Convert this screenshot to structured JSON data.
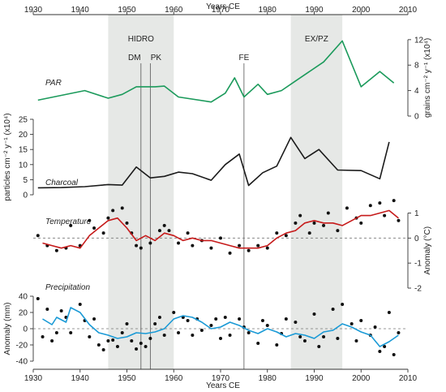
{
  "chart_data": {
    "type": "line",
    "xlabel_top": "Years CE",
    "xlabel_bottom": "Years CE",
    "x_range": [
      1930,
      2010
    ],
    "x_ticks": [
      "1930",
      "1940",
      "1950",
      "1960",
      "1970",
      "1980",
      "1990",
      "2000",
      "2010"
    ],
    "shaded_periods": [
      {
        "label": "HIDRO",
        "from": 1946,
        "to": 1960,
        "color": "#e6e8e6"
      },
      {
        "label": "EX/PZ",
        "from": 1985,
        "to": 1996,
        "color": "#e6e8e6"
      }
    ],
    "event_lines": [
      {
        "label": "DM",
        "year": 1953
      },
      {
        "label": "PK",
        "year": 1955
      },
      {
        "label": "FE",
        "year": 1975
      }
    ],
    "panels": [
      {
        "id": "par",
        "title": "PAR",
        "ylabel": "grains cm⁻² y⁻¹ (x10⁴)",
        "axis_side": "right",
        "ylim": [
          0,
          13
        ],
        "yticks": [
          "0",
          "4",
          "8",
          "12"
        ],
        "ytick_values": [
          0,
          4,
          8,
          12
        ],
        "series": [
          {
            "color": "#1b9a5b",
            "x": [
              1931,
              1941,
              1946,
              1949,
              1952,
              1956,
              1958,
              1961,
              1968,
              1971,
              1973,
              1975,
              1978,
              1980,
              1983,
              1986,
              1992,
              1996,
              2000,
              2004,
              2007
            ],
            "values": [
              2.5,
              4.0,
              2.8,
              3.4,
              4.6,
              4.6,
              4.7,
              3.0,
              2.2,
              3.6,
              6.0,
              3.0,
              5.0,
              3.4,
              4.0,
              5.5,
              8.5,
              11.8,
              4.6,
              7.0,
              5.2
            ]
          }
        ]
      },
      {
        "id": "charcoal",
        "title": "Charcoal",
        "ylabel": "particles cm⁻² y⁻¹ (x10⁴)",
        "axis_side": "left",
        "ylim": [
          0,
          25
        ],
        "yticks": [
          "0",
          "5",
          "10",
          "15",
          "20",
          "25"
        ],
        "ytick_values": [
          0,
          5,
          10,
          15,
          20,
          25
        ],
        "series": [
          {
            "color": "#1a1a1a",
            "x": [
              1931,
              1936,
              1941,
              1946,
              1949,
              1952,
              1955,
              1958,
              1961,
              1964,
              1968,
              1971,
              1974,
              1976,
              1979,
              1982,
              1985,
              1988,
              1991,
              1995,
              2000,
              2004,
              2006
            ],
            "values": [
              2.3,
              2.4,
              2.7,
              3.4,
              3.2,
              9.2,
              5.6,
              6.1,
              7.5,
              7.0,
              4.8,
              10.0,
              13.5,
              3.1,
              7.3,
              9.5,
              19.0,
              12.0,
              15.0,
              8.2,
              8.0,
              5.3,
              17.5
            ]
          }
        ]
      },
      {
        "id": "temperature",
        "title": "Temperature",
        "ylabel": "Anomaly (°C)",
        "axis_side": "right",
        "ylim": [
          -2,
          1.6
        ],
        "yticks": [
          "-2",
          "-1",
          "0",
          "1"
        ],
        "ytick_values": [
          -2,
          -1,
          0,
          1
        ],
        "zero_line": true,
        "series": [
          {
            "color": "#c61a1a",
            "x": [
              1932,
              1934,
              1936,
              1938,
              1940,
              1942,
              1944,
              1946,
              1948,
              1950,
              1952,
              1954,
              1956,
              1958,
              1960,
              1962,
              1964,
              1966,
              1968,
              1970,
              1972,
              1974,
              1976,
              1978,
              1980,
              1982,
              1984,
              1986,
              1988,
              1990,
              1992,
              1994,
              1996,
              1998,
              2000,
              2002,
              2004,
              2006,
              2008
            ],
            "values": [
              -0.2,
              -0.3,
              -0.4,
              -0.3,
              -0.4,
              0.1,
              0.4,
              0.7,
              0.8,
              0.4,
              -0.1,
              0.1,
              -0.1,
              0.2,
              0.1,
              -0.1,
              0.0,
              -0.1,
              -0.1,
              -0.2,
              -0.3,
              -0.4,
              -0.4,
              -0.4,
              -0.3,
              0.0,
              0.2,
              0.3,
              0.6,
              0.7,
              0.6,
              0.6,
              0.5,
              0.7,
              0.9,
              0.9,
              1.0,
              1.1,
              0.8
            ]
          }
        ],
        "scatter": {
          "color": "#111111",
          "x": [
            1931,
            1933,
            1935,
            1937,
            1938,
            1940,
            1942,
            1943,
            1945,
            1946,
            1947,
            1949,
            1950,
            1951,
            1952,
            1953,
            1955,
            1957,
            1958,
            1959,
            1961,
            1963,
            1964,
            1966,
            1968,
            1970,
            1972,
            1974,
            1976,
            1978,
            1980,
            1982,
            1984,
            1986,
            1987,
            1989,
            1990,
            1992,
            1993,
            1995,
            1997,
            1999,
            2000,
            2002,
            2004,
            2005,
            2007,
            2008
          ],
          "values": [
            0.1,
            -0.3,
            -0.5,
            -0.4,
            0.5,
            -0.3,
            0.7,
            0.4,
            0.2,
            0.8,
            1.1,
            1.2,
            0.6,
            0.2,
            -0.3,
            -0.4,
            -0.2,
            0.3,
            0.5,
            0.3,
            -0.2,
            0.2,
            -0.3,
            -0.1,
            -0.4,
            0.0,
            -0.6,
            -0.3,
            -0.5,
            -0.3,
            -0.4,
            0.2,
            0.1,
            0.6,
            0.9,
            0.2,
            0.6,
            0.5,
            1.0,
            0.3,
            1.2,
            0.8,
            0.6,
            1.3,
            1.4,
            0.9,
            1.5,
            0.7
          ]
        }
      },
      {
        "id": "precipitation",
        "title": "Precipitation",
        "ylabel": "Anomaly (mm)",
        "axis_side": "left",
        "ylim": [
          -45,
          45
        ],
        "yticks": [
          "-40",
          "-20",
          "0",
          "20",
          "40"
        ],
        "ytick_values": [
          -40,
          -20,
          0,
          20,
          40
        ],
        "zero_line": true,
        "series": [
          {
            "color": "#1a9ad6",
            "x": [
              1932,
              1934,
              1935,
              1937,
              1938,
              1940,
              1942,
              1944,
              1946,
              1948,
              1950,
              1952,
              1954,
              1956,
              1958,
              1960,
              1962,
              1964,
              1966,
              1968,
              1970,
              1972,
              1974,
              1976,
              1978,
              1980,
              1982,
              1984,
              1986,
              1988,
              1990,
              1992,
              1994,
              1996,
              1998,
              2000,
              2002,
              2004,
              2006,
              2008
            ],
            "values": [
              12,
              5,
              14,
              8,
              26,
              20,
              5,
              -5,
              -8,
              -12,
              -10,
              -5,
              -6,
              -4,
              0,
              12,
              16,
              14,
              8,
              0,
              2,
              8,
              4,
              -2,
              -6,
              0,
              -4,
              -10,
              -6,
              -8,
              -12,
              -4,
              -2,
              6,
              2,
              -4,
              -8,
              -22,
              -16,
              -8
            ]
          }
        ],
        "scatter": {
          "color": "#111111",
          "x": [
            1931,
            1932,
            1933,
            1934,
            1935,
            1936,
            1937,
            1938,
            1940,
            1941,
            1942,
            1943,
            1944,
            1945,
            1946,
            1947,
            1948,
            1949,
            1950,
            1951,
            1952,
            1953,
            1954,
            1955,
            1956,
            1957,
            1958,
            1960,
            1961,
            1962,
            1963,
            1964,
            1965,
            1966,
            1968,
            1969,
            1970,
            1971,
            1972,
            1974,
            1975,
            1976,
            1978,
            1979,
            1980,
            1982,
            1983,
            1984,
            1986,
            1987,
            1988,
            1990,
            1991,
            1992,
            1994,
            1995,
            1996,
            1998,
            1999,
            2000,
            2002,
            2003,
            2004,
            2005,
            2006,
            2007,
            2008
          ],
          "values": [
            37,
            -10,
            24,
            -15,
            -5,
            22,
            14,
            -5,
            30,
            10,
            -10,
            12,
            -20,
            -26,
            -15,
            -14,
            -22,
            -5,
            6,
            -15,
            -25,
            -18,
            -22,
            -12,
            6,
            14,
            -8,
            20,
            -5,
            14,
            10,
            -8,
            12,
            -2,
            4,
            12,
            -12,
            14,
            -8,
            12,
            2,
            -5,
            -18,
            10,
            4,
            -20,
            -6,
            12,
            8,
            -10,
            -15,
            18,
            -22,
            -10,
            24,
            -12,
            30,
            6,
            -15,
            10,
            -8,
            2,
            -28,
            -22,
            20,
            -32,
            -5
          ]
        }
      }
    ]
  }
}
